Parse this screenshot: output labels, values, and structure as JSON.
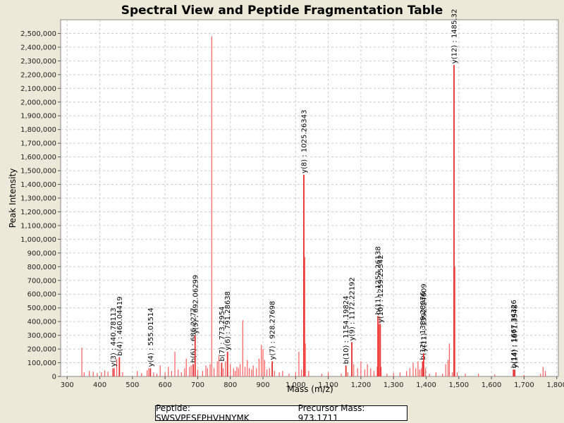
{
  "chart_data": {
    "type": "bar",
    "title": "Spectral View and Peptide Fragmentation Table",
    "xlabel": "Mass (m/z)",
    "ylabel": "Peak Intensity",
    "xlim": [
      280,
      1805
    ],
    "ylim": [
      0,
      2600000
    ],
    "xticks": [
      300,
      400,
      500,
      600,
      700,
      800,
      900,
      1000,
      1100,
      1200,
      1300,
      1400,
      1500,
      1600,
      1700,
      1800
    ],
    "xtick_labels": [
      "300",
      "400",
      "500",
      "600",
      "700",
      "800",
      "900",
      "1,000",
      "1,100",
      "1,200",
      "1,300",
      "1,400",
      "1,500",
      "1,600",
      "1,700",
      "1,800"
    ],
    "yticks": [
      0,
      100000,
      200000,
      300000,
      400000,
      500000,
      600000,
      700000,
      800000,
      900000,
      1000000,
      1100000,
      1200000,
      1300000,
      1400000,
      1500000,
      1600000,
      1700000,
      1800000,
      1900000,
      2000000,
      2100000,
      2200000,
      2300000,
      2400000,
      2500000
    ],
    "ytick_labels": [
      "0",
      "100,000",
      "200,000",
      "300,000",
      "400,000",
      "500,000",
      "600,000",
      "700,000",
      "800,000",
      "900,000",
      "1,000,000",
      "1,100,000",
      "1,200,000",
      "1,300,000",
      "1,400,000",
      "1,500,000",
      "1,600,000",
      "1,700,000",
      "1,800,000",
      "1,900,000",
      "2,000,000",
      "2,100,000",
      "2,200,000",
      "2,300,000",
      "2,400,000",
      "2,500,000"
    ],
    "peaks": [
      [
        345,
        210000
      ],
      [
        352,
        30000
      ],
      [
        368,
        40000
      ],
      [
        380,
        35000
      ],
      [
        392,
        25000
      ],
      [
        405,
        30000
      ],
      [
        415,
        45000
      ],
      [
        425,
        35000
      ],
      [
        440,
        50000
      ],
      [
        445,
        60000
      ],
      [
        452,
        130000
      ],
      [
        460,
        140000
      ],
      [
        470,
        30000
      ],
      [
        515,
        40000
      ],
      [
        528,
        25000
      ],
      [
        545,
        45000
      ],
      [
        550,
        60000
      ],
      [
        555,
        50000
      ],
      [
        565,
        30000
      ],
      [
        575,
        20000
      ],
      [
        585,
        80000
      ],
      [
        600,
        30000
      ],
      [
        610,
        70000
      ],
      [
        620,
        40000
      ],
      [
        630,
        180000
      ],
      [
        640,
        50000
      ],
      [
        650,
        30000
      ],
      [
        660,
        60000
      ],
      [
        665,
        130000
      ],
      [
        675,
        70000
      ],
      [
        680,
        80000
      ],
      [
        686,
        90000
      ],
      [
        692,
        300000
      ],
      [
        700,
        50000
      ],
      [
        715,
        40000
      ],
      [
        725,
        80000
      ],
      [
        730,
        60000
      ],
      [
        738,
        90000
      ],
      [
        743,
        2480000
      ],
      [
        750,
        60000
      ],
      [
        760,
        110000
      ],
      [
        765,
        150000
      ],
      [
        773,
        100000
      ],
      [
        778,
        60000
      ],
      [
        785,
        110000
      ],
      [
        792,
        180000
      ],
      [
        800,
        90000
      ],
      [
        810,
        60000
      ],
      [
        815,
        40000
      ],
      [
        820,
        70000
      ],
      [
        825,
        60000
      ],
      [
        830,
        90000
      ],
      [
        838,
        410000
      ],
      [
        845,
        70000
      ],
      [
        852,
        120000
      ],
      [
        858,
        60000
      ],
      [
        865,
        50000
      ],
      [
        870,
        80000
      ],
      [
        880,
        60000
      ],
      [
        888,
        130000
      ],
      [
        895,
        230000
      ],
      [
        900,
        200000
      ],
      [
        905,
        120000
      ],
      [
        912,
        50000
      ],
      [
        920,
        60000
      ],
      [
        928,
        110000
      ],
      [
        935,
        40000
      ],
      [
        950,
        30000
      ],
      [
        960,
        40000
      ],
      [
        980,
        20000
      ],
      [
        1000,
        30000
      ],
      [
        1010,
        180000
      ],
      [
        1018,
        50000
      ],
      [
        1025,
        1470000
      ],
      [
        1028,
        870000
      ],
      [
        1030,
        240000
      ],
      [
        1040,
        40000
      ],
      [
        1080,
        20000
      ],
      [
        1100,
        30000
      ],
      [
        1140,
        20000
      ],
      [
        1154,
        80000
      ],
      [
        1160,
        30000
      ],
      [
        1172,
        250000
      ],
      [
        1178,
        90000
      ],
      [
        1190,
        60000
      ],
      [
        1200,
        110000
      ],
      [
        1212,
        50000
      ],
      [
        1220,
        90000
      ],
      [
        1230,
        60000
      ],
      [
        1240,
        40000
      ],
      [
        1250,
        70000
      ],
      [
        1255,
        380000
      ],
      [
        1258,
        440000
      ],
      [
        1262,
        70000
      ],
      [
        1280,
        20000
      ],
      [
        1300,
        25000
      ],
      [
        1320,
        30000
      ],
      [
        1340,
        40000
      ],
      [
        1350,
        60000
      ],
      [
        1360,
        100000
      ],
      [
        1368,
        60000
      ],
      [
        1375,
        110000
      ],
      [
        1380,
        50000
      ],
      [
        1385,
        60000
      ],
      [
        1392,
        170000
      ],
      [
        1398,
        60000
      ],
      [
        1410,
        20000
      ],
      [
        1430,
        30000
      ],
      [
        1450,
        20000
      ],
      [
        1460,
        90000
      ],
      [
        1467,
        120000
      ],
      [
        1471,
        240000
      ],
      [
        1480,
        30000
      ],
      [
        1485,
        2270000
      ],
      [
        1488,
        800000
      ],
      [
        1495,
        30000
      ],
      [
        1520,
        20000
      ],
      [
        1560,
        20000
      ],
      [
        1610,
        15000
      ],
      [
        1667,
        50000
      ],
      [
        1672,
        50000
      ],
      [
        1700,
        10000
      ],
      [
        1750,
        20000
      ],
      [
        1758,
        70000
      ],
      [
        1765,
        40000
      ]
    ],
    "annotations": [
      {
        "x": 440.78113,
        "y": 60000,
        "label": "y(3) : 440.78113"
      },
      {
        "x": 460.04419,
        "y": 140000,
        "label": "b(4) : 460.04419"
      },
      {
        "x": 555.01514,
        "y": 60000,
        "label": "y(4) : 555.01514"
      },
      {
        "x": 686.2277,
        "y": 90000,
        "label": "b(6) : 686.2277"
      },
      {
        "x": 692.06299,
        "y": 300000,
        "label": "y(5) : 692.06299"
      },
      {
        "x": 773.2954,
        "y": 100000,
        "label": "b(7) : 773.2954"
      },
      {
        "x": 791.28638,
        "y": 180000,
        "label": "y(6) : 791.28638"
      },
      {
        "x": 928.27698,
        "y": 110000,
        "label": "y(7) : 928.27698"
      },
      {
        "x": 1025.26343,
        "y": 1470000,
        "label": "y(8) : 1025.26343"
      },
      {
        "x": 1154.19824,
        "y": 80000,
        "label": "b(10) : 1154.19824"
      },
      {
        "x": 1172.22192,
        "y": 250000,
        "label": "y(9) : 1172.22192"
      },
      {
        "x": 1252.26138,
        "y": 440000,
        "label": "b(11) : 1252.26138"
      },
      {
        "x": 1259.25342,
        "y": 380000,
        "label": "y(10) : 1259.25342"
      },
      {
        "x": 1389.28076,
        "y": 110000,
        "label": "b(12) : 1389.28076"
      },
      {
        "x": 1392.24609,
        "y": 170000,
        "label": "y(11) : 1392.24609"
      },
      {
        "x": 1485.32,
        "y": 2270000,
        "label": "y(12) : 1485.32"
      },
      {
        "x": 1667.34326,
        "y": 50000,
        "label": "b(14) : 1667.34326"
      },
      {
        "x": 1671.3548,
        "y": 50000,
        "label": "y(14) : 1671.3548"
      }
    ],
    "colors": {
      "peak": "#ff5a5a",
      "annotated_peak": "#e83030",
      "grid": "#cccccc",
      "plot_bg": "#ffffff"
    }
  },
  "footer": {
    "peptide": "Peptide: SWSVPESFPHVHNYMK",
    "precursor_mass": "Precursor Mass: 973.1711"
  }
}
